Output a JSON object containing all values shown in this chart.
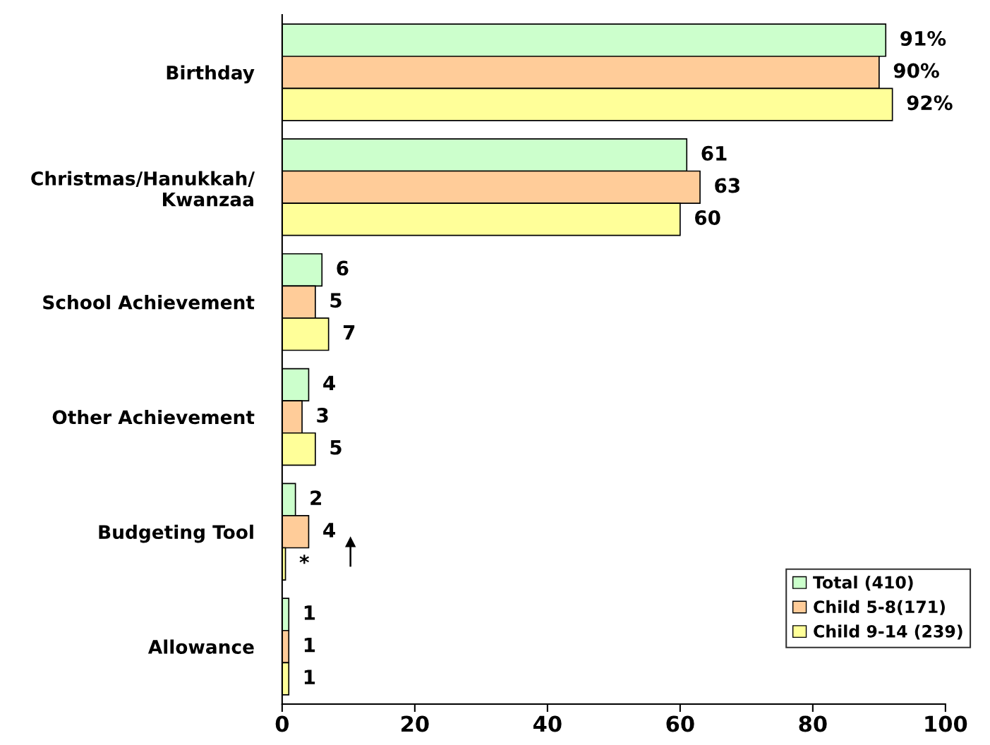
{
  "chart_data": {
    "type": "bar",
    "orientation": "horizontal",
    "categories": [
      "Birthday",
      "Christmas/Hanukkah/\nKwanzaa",
      "School Achievement",
      "Other Achievement",
      "Budgeting Tool",
      "Allowance"
    ],
    "series": [
      {
        "name": "Total (410)",
        "color": "#ccffcc",
        "values": [
          91,
          61,
          6,
          4,
          2,
          1
        ],
        "value_labels": [
          "91%",
          "61",
          "6",
          "4",
          "2",
          "1"
        ]
      },
      {
        "name": "Child 5-8(171)",
        "color": "#ffcc99",
        "values": [
          90,
          63,
          5,
          3,
          4,
          1
        ],
        "value_labels": [
          "90%",
          "63",
          "5",
          "3",
          "4",
          "1"
        ]
      },
      {
        "name": "Child 9-14 (239)",
        "color": "#ffff99",
        "values": [
          92,
          60,
          7,
          5,
          0.5,
          1
        ],
        "value_labels": [
          "92%",
          "60",
          "7",
          "5",
          "*",
          "1"
        ]
      }
    ],
    "xlim": [
      0,
      100
    ],
    "xticks": [
      0,
      20,
      40,
      60,
      80,
      100
    ],
    "grid": false,
    "legend": "bottom right"
  }
}
